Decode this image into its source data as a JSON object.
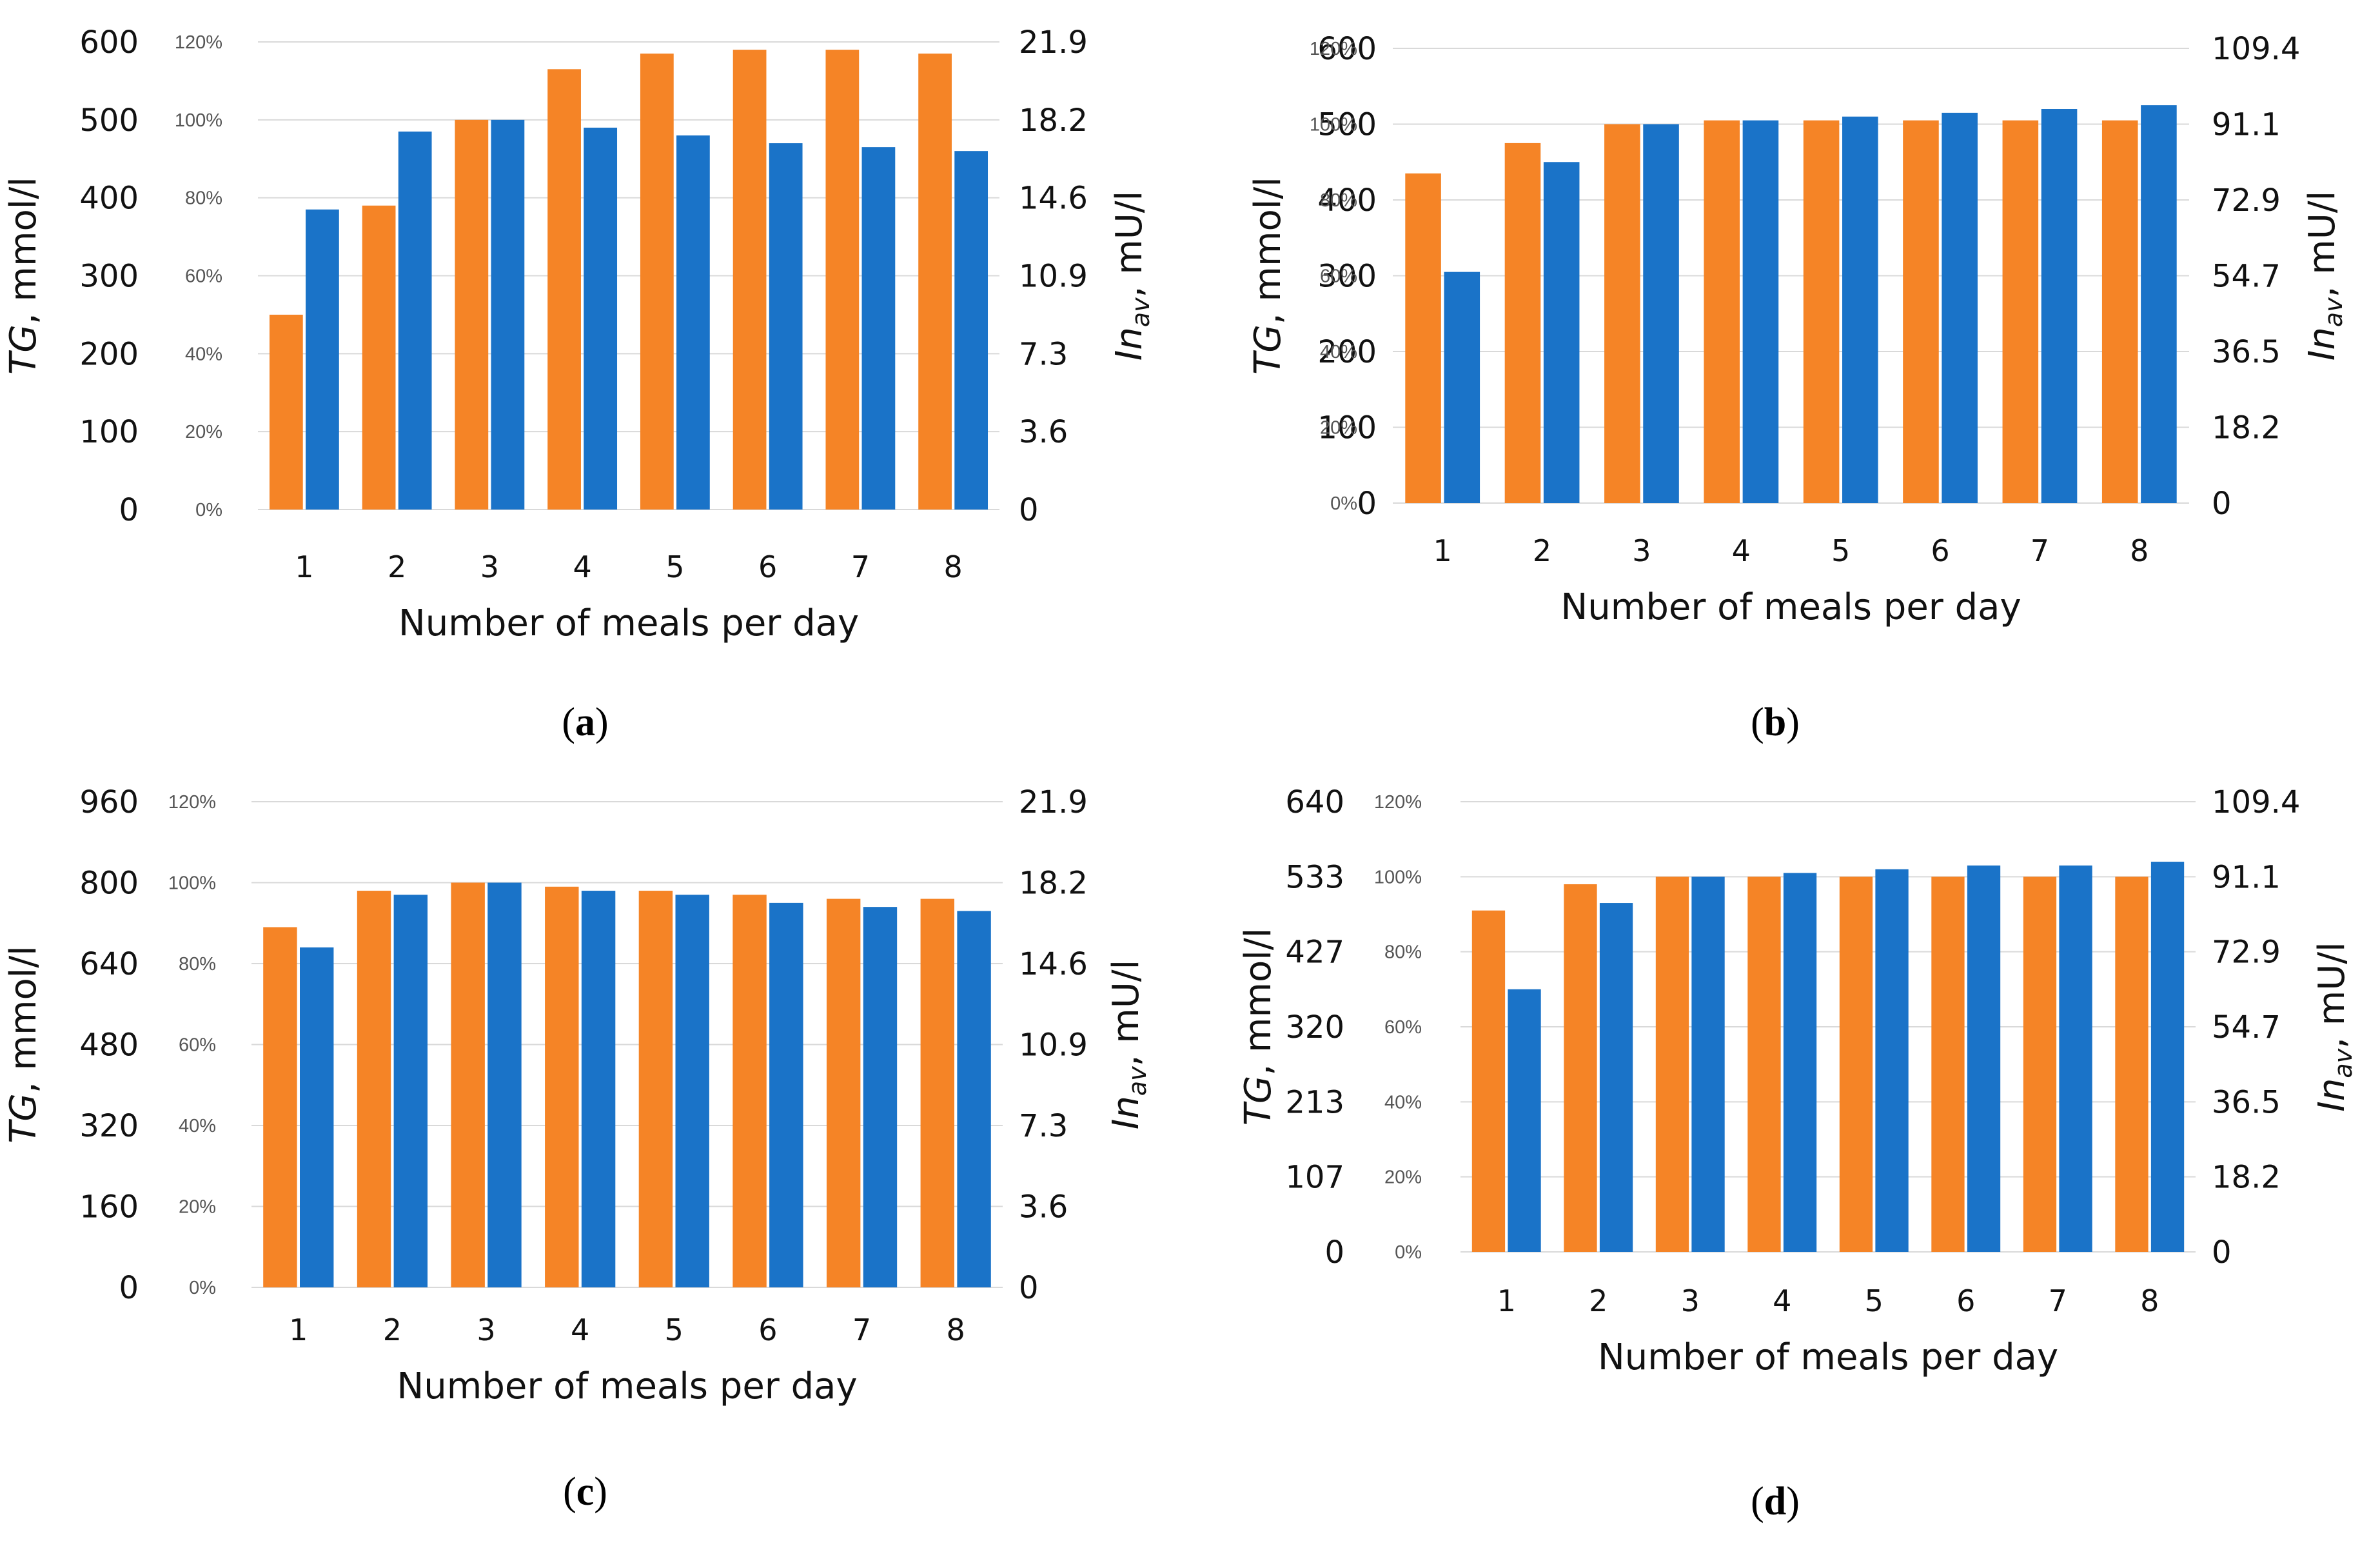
{
  "colors": {
    "series_a": "#F58426",
    "series_b": "#1A73C8",
    "grid": "#D9D9D9"
  },
  "chart_data": [
    {
      "type": "bar",
      "panel_label": "a",
      "title": "",
      "xlabel": "Number of meals per day",
      "ylabel": {
        "italic": "TG",
        "rest": ", mmol/l"
      },
      "y2label": {
        "italic": "In",
        "sub": "av",
        "rest": ", mU/l"
      },
      "categories": [
        "1",
        "2",
        "3",
        "4",
        "5",
        "6",
        "7",
        "8"
      ],
      "yticks": [
        "0",
        "100",
        "200",
        "300",
        "400",
        "500",
        "600"
      ],
      "ylim": [
        0,
        600
      ],
      "y2ticks": [
        "0",
        "3.6",
        "7.3",
        "10.9",
        "14.6",
        "18.2",
        "21.9"
      ],
      "y2lim": [
        0,
        21.9
      ],
      "pct_ticks": [
        "0%",
        "20%",
        "40%",
        "60%",
        "80%",
        "100%",
        "120%"
      ],
      "pct_lim": [
        0,
        120
      ],
      "series": [
        {
          "name": "TG",
          "axis": "pct",
          "values": [
            50,
            78,
            100,
            113,
            117,
            118,
            118,
            117
          ]
        },
        {
          "name": "Inav",
          "axis": "pct",
          "values": [
            77,
            97,
            100,
            98,
            96,
            94,
            93,
            92
          ]
        }
      ]
    },
    {
      "type": "bar",
      "panel_label": "b",
      "title": "",
      "xlabel": "Number of meals per day",
      "ylabel": {
        "italic": "TG",
        "rest": ", mmol/l"
      },
      "y2label": {
        "italic": "In",
        "sub": "av",
        "rest": ", mU/l"
      },
      "categories": [
        "1",
        "2",
        "3",
        "4",
        "5",
        "6",
        "7",
        "8"
      ],
      "yticks": [
        "0",
        "100",
        "200",
        "300",
        "400",
        "500",
        "600"
      ],
      "ylim": [
        0,
        600
      ],
      "y2ticks": [
        "0",
        "18.2",
        "36.5",
        "54.7",
        "72.9",
        "91.1",
        "109.4"
      ],
      "y2lim": [
        0,
        109.4
      ],
      "pct_ticks": [
        "0%",
        "20%",
        "40%",
        "60%",
        "80%",
        "100%",
        "120%"
      ],
      "pct_lim": [
        0,
        120
      ],
      "series": [
        {
          "name": "TG",
          "axis": "pct",
          "values": [
            87,
            95,
            100,
            101,
            101,
            101,
            101,
            101
          ]
        },
        {
          "name": "Inav",
          "axis": "pct",
          "values": [
            61,
            90,
            100,
            101,
            102,
            103,
            104,
            105
          ]
        }
      ]
    },
    {
      "type": "bar",
      "panel_label": "c",
      "title": "",
      "xlabel": "Number of meals per day",
      "ylabel": {
        "italic": "TG",
        "rest": ", mmol/l"
      },
      "y2label": {
        "italic": "In",
        "sub": "av",
        "rest": ", mU/l"
      },
      "categories": [
        "1",
        "2",
        "3",
        "4",
        "5",
        "6",
        "7",
        "8"
      ],
      "yticks": [
        "0",
        "160",
        "320",
        "480",
        "640",
        "800",
        "960"
      ],
      "ylim": [
        0,
        960
      ],
      "y2ticks": [
        "0",
        "3.6",
        "7.3",
        "10.9",
        "14.6",
        "18.2",
        "21.9"
      ],
      "y2lim": [
        0,
        21.9
      ],
      "pct_ticks": [
        "0%",
        "20%",
        "40%",
        "60%",
        "80%",
        "100%",
        "120%"
      ],
      "pct_lim": [
        0,
        120
      ],
      "series": [
        {
          "name": "TG",
          "axis": "pct",
          "values": [
            89,
            98,
            100,
            99,
            98,
            97,
            96,
            96
          ]
        },
        {
          "name": "Inav",
          "axis": "pct",
          "values": [
            84,
            97,
            100,
            98,
            97,
            95,
            94,
            93
          ]
        }
      ]
    },
    {
      "type": "bar",
      "panel_label": "d",
      "title": "",
      "xlabel": "Number of meals per day",
      "ylabel": {
        "italic": "TG",
        "rest": ", mmol/l"
      },
      "y2label": {
        "italic": "In",
        "sub": "av",
        "rest": ", mU/l"
      },
      "categories": [
        "1",
        "2",
        "3",
        "4",
        "5",
        "6",
        "7",
        "8"
      ],
      "yticks": [
        "0",
        "107",
        "213",
        "320",
        "427",
        "533",
        "640"
      ],
      "ylim": [
        0,
        640
      ],
      "y2ticks": [
        "0",
        "18.2",
        "36.5",
        "54.7",
        "72.9",
        "91.1",
        "109.4"
      ],
      "y2lim": [
        0,
        109.4
      ],
      "pct_ticks": [
        "0%",
        "20%",
        "40%",
        "60%",
        "80%",
        "100%",
        "120%"
      ],
      "pct_lim": [
        0,
        120
      ],
      "series": [
        {
          "name": "TG",
          "axis": "pct",
          "values": [
            91,
            98,
            100,
            100,
            100,
            100,
            100,
            100
          ]
        },
        {
          "name": "Inav",
          "axis": "pct",
          "values": [
            70,
            93,
            100,
            101,
            102,
            103,
            103,
            104
          ]
        }
      ]
    }
  ]
}
